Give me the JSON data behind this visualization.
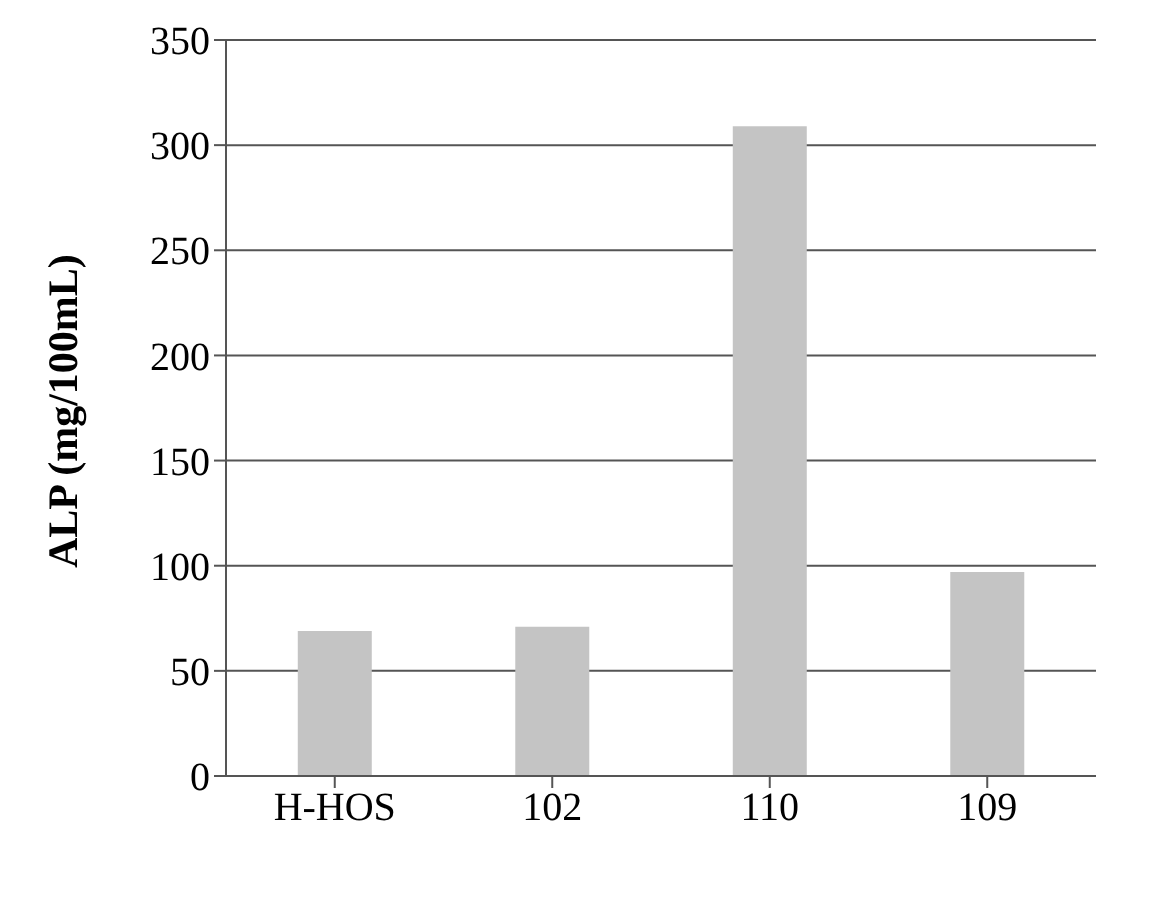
{
  "chart_data": {
    "type": "bar",
    "ylabel": "ALP (mg/100mL)",
    "categories": [
      "H-HOS",
      "102",
      "110",
      "109"
    ],
    "values": [
      69,
      71,
      309,
      97
    ],
    "color": "#c4c4c4",
    "ylim": [
      0,
      350
    ],
    "yticks": [
      0,
      50,
      100,
      150,
      200,
      250,
      300,
      350
    ],
    "grid": "y"
  }
}
